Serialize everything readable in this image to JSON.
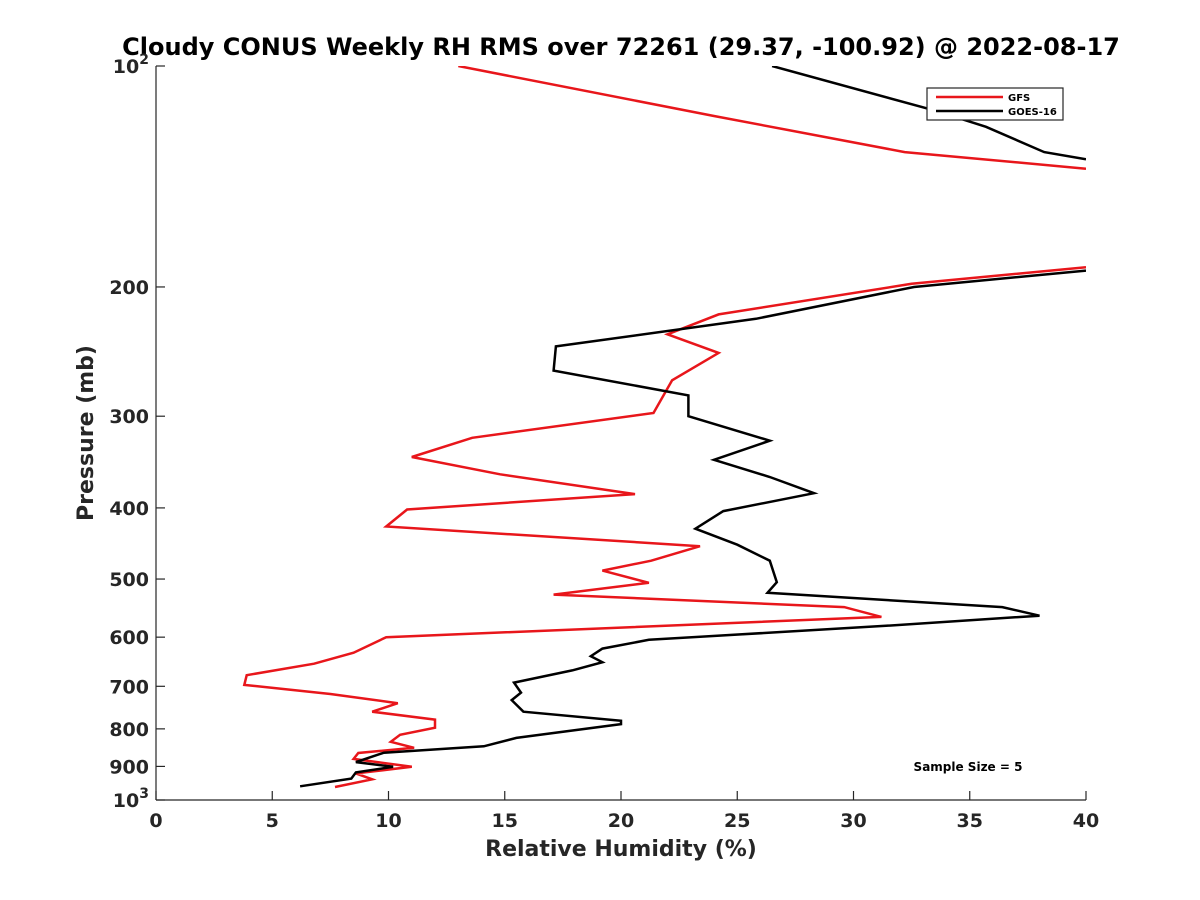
{
  "chart_data": {
    "type": "line",
    "title": "Cloudy CONUS Weekly RH RMS over 72261 (29.37, -100.92) @ 2022-08-17",
    "xlabel": "Relative Humidity (%)",
    "ylabel": "Pressure (mb)",
    "xlim": [
      0,
      40
    ],
    "ylim": [
      100,
      1000
    ],
    "y_scale": "log",
    "y_reversed": true,
    "x_ticks": [
      "0",
      "5",
      "10",
      "15",
      "20",
      "25",
      "30",
      "35",
      "40"
    ],
    "x_tick_values": [
      0,
      5,
      10,
      15,
      20,
      25,
      30,
      35,
      40
    ],
    "y_ticks": [
      {
        "value": 100,
        "base": "10",
        "exp": "2"
      },
      {
        "value": 200,
        "label": "200"
      },
      {
        "value": 300,
        "label": "300"
      },
      {
        "value": 400,
        "label": "400"
      },
      {
        "value": 500,
        "label": "500"
      },
      {
        "value": 600,
        "label": "600"
      },
      {
        "value": 700,
        "label": "700"
      },
      {
        "value": 800,
        "label": "800"
      },
      {
        "value": 900,
        "label": "900"
      },
      {
        "value": 1000,
        "base": "10",
        "exp": "3"
      }
    ],
    "grid": false,
    "legend_position": "top-right",
    "annotation": "Sample Size = 5",
    "series": [
      {
        "name": "GFS",
        "color": "#e8161b",
        "points": [
          [
            13.0,
            100
          ],
          [
            24.0,
            117
          ],
          [
            32.2,
            131
          ],
          [
            40.0,
            138
          ],
          [
            null,
            150
          ],
          [
            40.0,
            188
          ],
          [
            32.5,
            198
          ],
          [
            24.2,
            218
          ],
          [
            22.0,
            232
          ],
          [
            24.2,
            246
          ],
          [
            22.2,
            268
          ],
          [
            21.4,
            297
          ],
          [
            13.6,
            321
          ],
          [
            11.0,
            341
          ],
          [
            14.8,
            360
          ],
          [
            20.6,
            383
          ],
          [
            10.8,
            402
          ],
          [
            9.9,
            424
          ],
          [
            23.4,
            451
          ],
          [
            21.3,
            472
          ],
          [
            19.2,
            487
          ],
          [
            21.2,
            506
          ],
          [
            17.1,
            525
          ],
          [
            29.6,
            546
          ],
          [
            31.2,
            563
          ],
          [
            9.9,
            600
          ],
          [
            8.5,
            630
          ],
          [
            6.8,
            652
          ],
          [
            3.9,
            676
          ],
          [
            3.8,
            697
          ],
          [
            7.5,
            717
          ],
          [
            10.4,
            738
          ],
          [
            9.3,
            758
          ],
          [
            12.0,
            777
          ],
          [
            12.0,
            797
          ],
          [
            10.5,
            815
          ],
          [
            10.1,
            833
          ],
          [
            11.1,
            849
          ],
          [
            8.7,
            863
          ],
          [
            8.5,
            879
          ],
          [
            11.0,
            901
          ],
          [
            8.6,
            920
          ],
          [
            9.3,
            937
          ],
          [
            7.7,
            960
          ]
        ]
      },
      {
        "name": "GOES-16",
        "color": "#000000",
        "points": [
          [
            26.5,
            100
          ],
          [
            33.5,
            115
          ],
          [
            35.7,
            121
          ],
          [
            38.2,
            131
          ],
          [
            40.0,
            134
          ],
          [
            null,
            150
          ],
          [
            40.0,
            190
          ],
          [
            32.6,
            200
          ],
          [
            25.8,
            221
          ],
          [
            17.2,
            241
          ],
          [
            17.1,
            260
          ],
          [
            22.9,
            281
          ],
          [
            22.9,
            300
          ],
          [
            26.4,
            324
          ],
          [
            24.0,
            344
          ],
          [
            26.4,
            363
          ],
          [
            28.3,
            382
          ],
          [
            24.4,
            404
          ],
          [
            23.2,
            427
          ],
          [
            25.0,
            449
          ],
          [
            26.4,
            472
          ],
          [
            26.7,
            505
          ],
          [
            26.3,
            522
          ],
          [
            36.4,
            546
          ],
          [
            38.0,
            561
          ],
          [
            31.4,
            579
          ],
          [
            21.2,
            605
          ],
          [
            19.2,
            622
          ],
          [
            18.7,
            637
          ],
          [
            19.2,
            649
          ],
          [
            17.9,
            666
          ],
          [
            15.4,
            692
          ],
          [
            15.7,
            714
          ],
          [
            15.3,
            731
          ],
          [
            15.8,
            758
          ],
          [
            20.0,
            780
          ],
          [
            20.0,
            788
          ],
          [
            15.5,
            823
          ],
          [
            14.1,
            845
          ],
          [
            9.8,
            862
          ],
          [
            8.6,
            888
          ],
          [
            10.2,
            901
          ],
          [
            8.6,
            917
          ],
          [
            8.4,
            935
          ],
          [
            6.2,
            958
          ]
        ]
      }
    ]
  }
}
